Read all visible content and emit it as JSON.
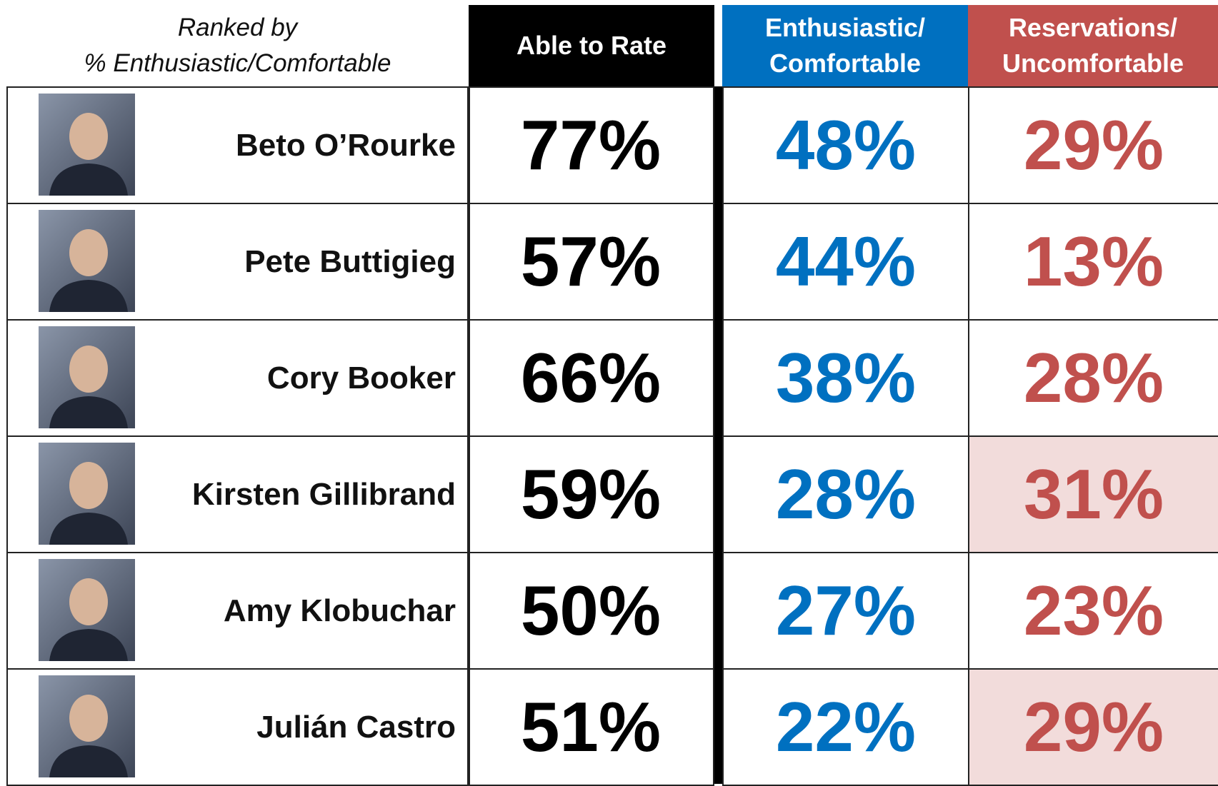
{
  "header": {
    "caption": [
      "Ranked by",
      "% Enthusiastic/Comfortable"
    ]
  },
  "table": {
    "columns": [
      [
        "Able to Rate"
      ],
      [
        "Enthusiastic/",
        "Comfortable"
      ],
      [
        "Reservations/",
        "Uncomfortable"
      ]
    ],
    "rows": [
      [
        "Beto O’Rourke",
        "77%",
        "48%",
        "29%"
      ],
      [
        "Pete Buttigieg",
        "57%",
        "44%",
        "13%"
      ],
      [
        "Cory Booker",
        "66%",
        "38%",
        "28%"
      ],
      [
        "Kirsten Gillibrand",
        "59%",
        "28%",
        "31%"
      ],
      [
        "Amy Klobuchar",
        "50%",
        "27%",
        "23%"
      ],
      [
        "Julián Castro",
        "51%",
        "22%",
        "29%"
      ]
    ]
  }
}
